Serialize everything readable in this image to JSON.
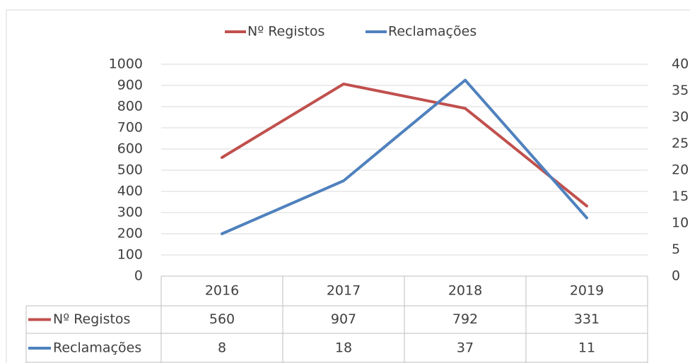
{
  "chart_data": {
    "type": "line",
    "categories": [
      "2016",
      "2017",
      "2018",
      "2019"
    ],
    "series": [
      {
        "name": "Nº Registos",
        "color": "#c0504d",
        "values": [
          560,
          907,
          792,
          331
        ]
      },
      {
        "name": "Reclamações",
        "color": "#4f81bd",
        "values": [
          8,
          18,
          37,
          11
        ],
        "axis": "y2"
      }
    ],
    "ylim": [
      0,
      1000
    ],
    "yticks": [
      0,
      100,
      200,
      300,
      400,
      500,
      600,
      700,
      800,
      900,
      1000
    ],
    "y2lim": [
      0,
      40
    ],
    "y2ticks": [
      0,
      5,
      10,
      15,
      20,
      25,
      30,
      35,
      40
    ],
    "grid": true,
    "legend": "top"
  }
}
